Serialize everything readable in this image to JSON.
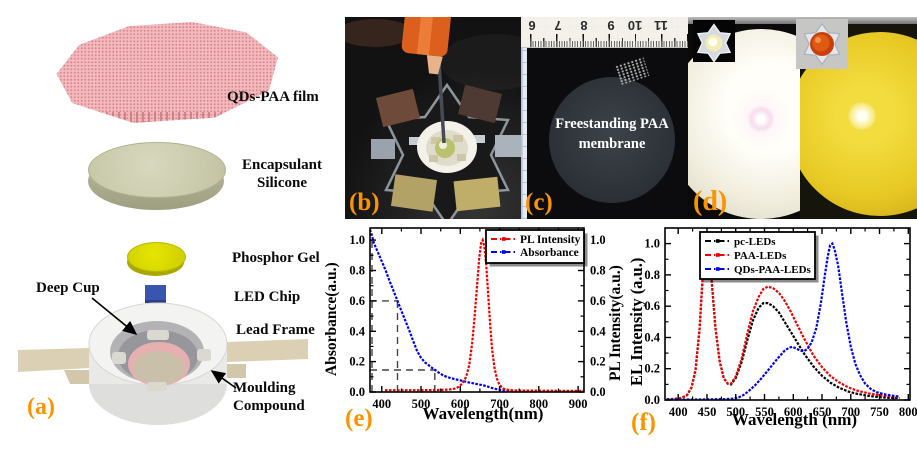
{
  "panel_a": {
    "tag": "(a)",
    "labels": {
      "film": "QDs-PAA film",
      "silicone": "Encapsulant Silicone",
      "phosphor": "Phosphor Gel",
      "chip": "LED Chip",
      "lead_frame": "Lead Frame",
      "deep_cup": "Deep Cup",
      "moulding": "Moulding Compound"
    }
  },
  "panel_b": {
    "tag": "(b)"
  },
  "panel_c": {
    "tag": "(c)",
    "membrane_text": "Freestanding PAA membrane",
    "ruler_numbers": [
      "6",
      "7",
      "8",
      "9",
      "10",
      "11"
    ]
  },
  "panel_d": {
    "tag": "(d)"
  },
  "panel_e": {
    "tag": "(e)"
  },
  "panel_f": {
    "tag": "(f)"
  },
  "colors": {
    "tag_orange": "#fb9400",
    "pl_red": "#ee0000",
    "absorbance_blue": "#0000ee",
    "pc_black": "#000000",
    "paa_red": "#ee0000",
    "qds_blue": "#0000ee"
  },
  "chart_data": [
    {
      "id": "e",
      "type": "line",
      "title": "",
      "xlabel": "Wavelength(nm)",
      "ylabel_left": "Absorbance(a.u.)",
      "ylabel_right": "PL Intensity(a.u.)",
      "xlim": [
        370,
        915
      ],
      "ylim": [
        0,
        1.08
      ],
      "xticks": [
        400,
        500,
        600,
        700,
        800,
        900
      ],
      "yticks": [
        0.0,
        0.2,
        0.4,
        0.6,
        0.8,
        1.0
      ],
      "xminor": [
        450,
        550,
        650,
        750,
        850
      ],
      "yminor": [
        0.1,
        0.3,
        0.5,
        0.7,
        0.9
      ],
      "grid": false,
      "legend_position": "top-right",
      "legend": [
        {
          "name": "PL Intensity",
          "color": "#ee0000"
        },
        {
          "name": "Absorbance",
          "color": "#0000ee"
        }
      ],
      "dashed_guides": [
        {
          "type": "h",
          "y": 1.0,
          "x0": 370,
          "x1": 375
        },
        {
          "type": "v",
          "x": 375,
          "y0": 0,
          "y1": 1.0
        },
        {
          "type": "h",
          "y": 0.6,
          "x0": 370,
          "x1": 440
        },
        {
          "type": "v",
          "x": 440,
          "y0": 0,
          "y1": 0.6
        },
        {
          "type": "h",
          "y": 0.145,
          "x0": 370,
          "x1": 535
        },
        {
          "type": "v",
          "x": 535,
          "y0": 0,
          "y1": 0.145
        }
      ],
      "series": [
        {
          "name": "Absorbance",
          "color": "#0000ee",
          "axis": "left",
          "x": [
            370,
            375,
            380,
            390,
            400,
            410,
            420,
            430,
            440,
            450,
            460,
            470,
            480,
            490,
            500,
            510,
            520,
            530,
            535,
            545,
            555,
            565,
            575,
            590,
            605,
            620,
            635,
            650,
            665,
            680,
            695,
            710,
            730,
            760,
            800,
            850,
            900,
            915
          ],
          "y": [
            1.07,
            1.03,
            0.98,
            0.92,
            0.86,
            0.8,
            0.73,
            0.665,
            0.6,
            0.535,
            0.47,
            0.405,
            0.335,
            0.27,
            0.225,
            0.195,
            0.175,
            0.155,
            0.147,
            0.128,
            0.112,
            0.1,
            0.092,
            0.082,
            0.074,
            0.064,
            0.056,
            0.048,
            0.04,
            0.027,
            0.017,
            0.011,
            0.008,
            0.007,
            0.006,
            0.006,
            0.006,
            0.006
          ]
        },
        {
          "name": "PL Intensity",
          "color": "#ee0000",
          "axis": "right",
          "x": [
            408,
            450,
            500,
            540,
            570,
            585,
            595,
            605,
            615,
            623,
            630,
            636,
            642,
            648,
            653,
            657,
            661,
            666,
            671,
            676,
            681,
            687,
            693,
            700,
            710,
            722,
            740,
            780,
            850,
            915
          ],
          "y": [
            0.012,
            0.012,
            0.012,
            0.013,
            0.016,
            0.022,
            0.032,
            0.055,
            0.1,
            0.18,
            0.32,
            0.48,
            0.68,
            0.88,
            0.98,
            1.0,
            0.96,
            0.84,
            0.64,
            0.44,
            0.28,
            0.16,
            0.09,
            0.045,
            0.022,
            0.014,
            0.01,
            0.009,
            0.008,
            0.008
          ]
        }
      ]
    },
    {
      "id": "f",
      "type": "line",
      "title": "",
      "xlabel": "Wavelength (nm)",
      "ylabel_left": "EL Intensity (a.u.)",
      "xlim": [
        377,
        803
      ],
      "ylim": [
        0,
        1.1
      ],
      "xticks": [
        400,
        450,
        500,
        550,
        600,
        650,
        700,
        750,
        800
      ],
      "yticks": [
        0.0,
        0.2,
        0.4,
        0.6,
        0.8,
        1.0
      ],
      "xminor": [
        425,
        475,
        525,
        575,
        625,
        675,
        725,
        775
      ],
      "yminor": [
        0.1,
        0.3,
        0.5,
        0.7,
        0.9
      ],
      "grid": false,
      "legend_position": "top-left-inner",
      "legend": [
        {
          "name": "pc-LEDs",
          "color": "#000000"
        },
        {
          "name": "PAA-LEDs",
          "color": "#ee0000"
        },
        {
          "name": "QDs-PAA-LEDs",
          "color": "#0000ee"
        }
      ],
      "series": [
        {
          "name": "pc-LEDs",
          "color": "#000000",
          "axis": "left",
          "x": [
            380,
            395,
            405,
            415,
            423,
            430,
            437,
            443,
            447,
            450,
            454,
            459,
            465,
            472,
            479,
            486,
            492,
            500,
            510,
            520,
            530,
            540,
            548,
            556,
            565,
            575,
            585,
            595,
            605,
            620,
            635,
            650,
            665,
            680,
            695,
            710,
            730,
            750,
            770,
            785
          ],
          "y": [
            0.005,
            0.007,
            0.012,
            0.03,
            0.08,
            0.19,
            0.45,
            0.82,
            0.98,
            1.0,
            0.93,
            0.72,
            0.45,
            0.25,
            0.14,
            0.105,
            0.1,
            0.14,
            0.24,
            0.38,
            0.51,
            0.59,
            0.62,
            0.62,
            0.6,
            0.56,
            0.5,
            0.44,
            0.38,
            0.29,
            0.215,
            0.155,
            0.11,
            0.078,
            0.055,
            0.04,
            0.027,
            0.018,
            0.013,
            0.012
          ]
        },
        {
          "name": "PAA-LEDs",
          "color": "#ee0000",
          "axis": "left",
          "x": [
            380,
            395,
            405,
            415,
            423,
            430,
            437,
            443,
            447,
            450,
            454,
            459,
            465,
            472,
            479,
            486,
            492,
            500,
            510,
            520,
            530,
            540,
            548,
            556,
            565,
            575,
            585,
            595,
            605,
            620,
            635,
            650,
            665,
            680,
            695,
            710,
            730,
            750,
            770,
            785
          ],
          "y": [
            0.005,
            0.007,
            0.012,
            0.03,
            0.08,
            0.19,
            0.45,
            0.82,
            0.98,
            1.0,
            0.93,
            0.72,
            0.45,
            0.25,
            0.14,
            0.105,
            0.105,
            0.15,
            0.26,
            0.42,
            0.57,
            0.66,
            0.71,
            0.725,
            0.715,
            0.685,
            0.635,
            0.57,
            0.495,
            0.385,
            0.285,
            0.21,
            0.152,
            0.112,
            0.082,
            0.061,
            0.043,
            0.031,
            0.024,
            0.021
          ]
        },
        {
          "name": "QDs-PAA-LEDs",
          "color": "#0000ee",
          "axis": "left",
          "x": [
            380,
            420,
            450,
            480,
            495,
            505,
            515,
            525,
            535,
            545,
            555,
            565,
            575,
            585,
            592,
            598,
            605,
            612,
            618,
            625,
            632,
            640,
            648,
            655,
            660,
            664,
            668,
            672,
            678,
            685,
            692,
            700,
            708,
            716,
            725,
            735,
            745,
            760,
            775,
            785
          ],
          "y": [
            0.003,
            0.003,
            0.004,
            0.006,
            0.009,
            0.016,
            0.035,
            0.065,
            0.1,
            0.14,
            0.185,
            0.23,
            0.275,
            0.315,
            0.333,
            0.34,
            0.33,
            0.316,
            0.312,
            0.326,
            0.37,
            0.46,
            0.62,
            0.8,
            0.92,
            0.99,
            1.0,
            0.96,
            0.86,
            0.68,
            0.5,
            0.34,
            0.23,
            0.16,
            0.105,
            0.07,
            0.05,
            0.035,
            0.026,
            0.022
          ]
        }
      ]
    }
  ]
}
